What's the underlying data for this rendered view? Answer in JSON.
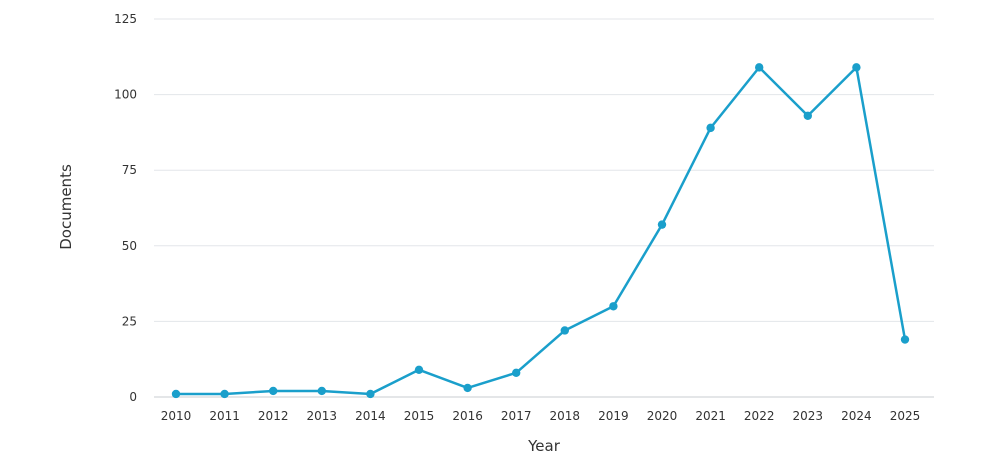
{
  "chart_data": {
    "type": "line",
    "title": "",
    "xlabel": "Year",
    "ylabel": "Documents",
    "categories": [
      "2010",
      "2011",
      "2012",
      "2013",
      "2014",
      "2015",
      "2016",
      "2017",
      "2018",
      "2019",
      "2020",
      "2021",
      "2022",
      "2023",
      "2024",
      "2025"
    ],
    "series": [
      {
        "values": [
          1,
          1,
          2,
          2,
          1,
          9,
          3,
          8,
          22,
          30,
          57,
          89,
          109,
          93,
          109,
          19
        ]
      }
    ],
    "ylim": [
      0,
      125
    ],
    "yticks": [
      "0",
      "25",
      "50",
      "75",
      "100",
      "125"
    ],
    "grid": true,
    "legend": "none",
    "colors": {
      "line": "#1a9fcb",
      "grid": "#e3e6ea",
      "text": "#333333"
    }
  }
}
